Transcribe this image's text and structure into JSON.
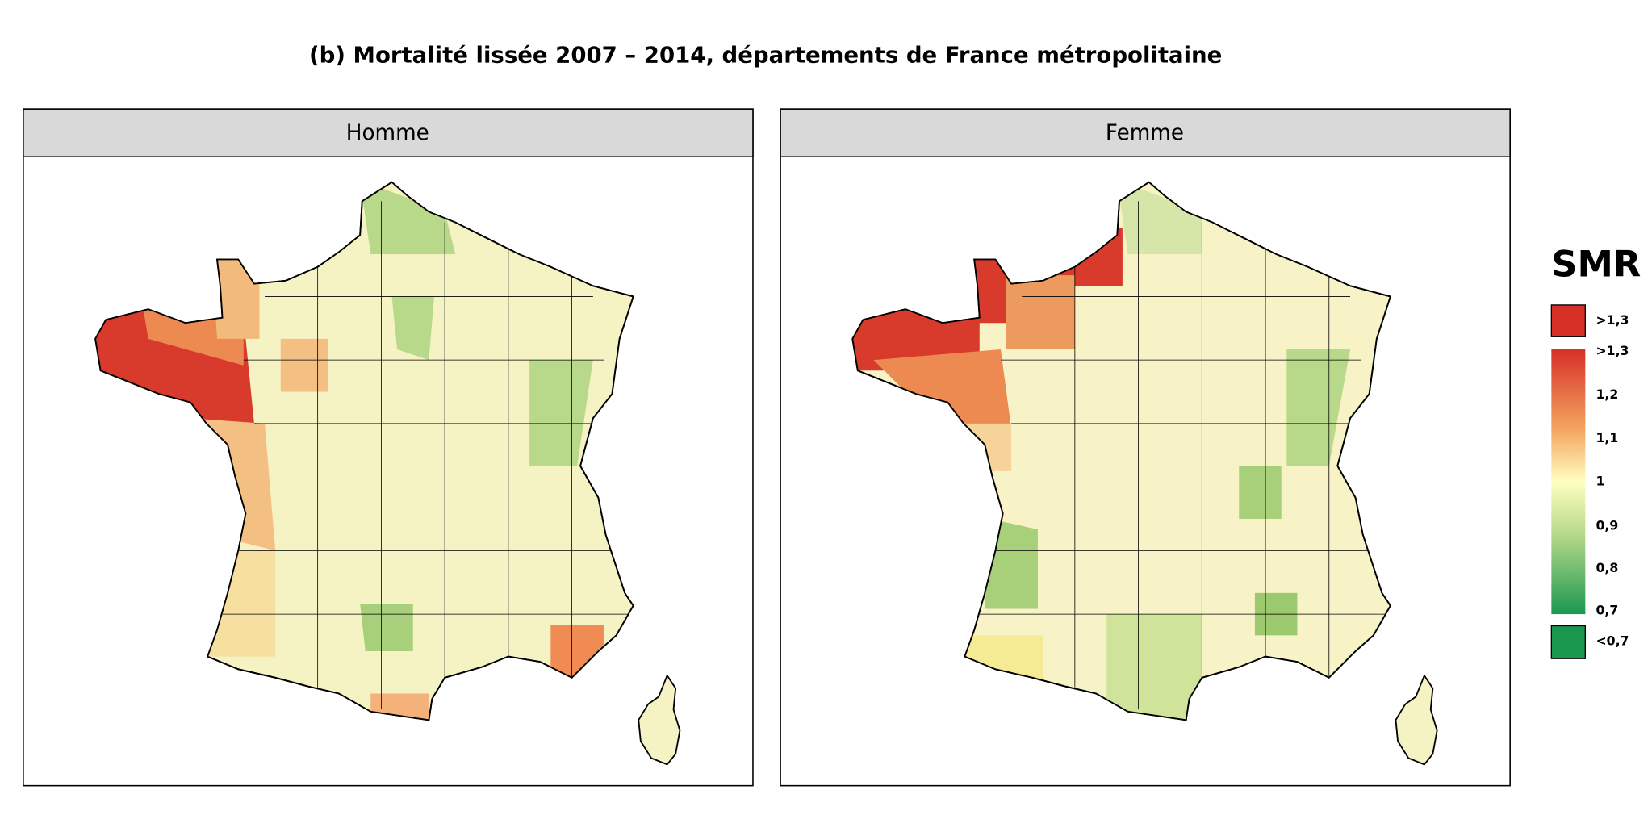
{
  "title": "(b) Mortalité lissée  2007 – 2014, départements de France métropolitaine",
  "panels": [
    {
      "title": "Homme"
    },
    {
      "title": "Femme"
    }
  ],
  "legend": {
    "title": "SMR",
    "labels": [
      ">1,3",
      ">1,3",
      "1,2",
      "1,1",
      "1",
      "0,9",
      "0,8",
      "0,7",
      "<0,7"
    ]
  }
}
